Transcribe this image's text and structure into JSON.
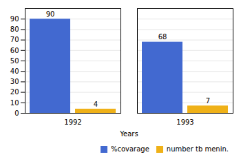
{
  "chart_data": {
    "type": "bar",
    "categories": [
      "1992",
      "1993"
    ],
    "series": [
      {
        "name": "%covarage",
        "values": [
          90,
          68
        ]
      },
      {
        "name": "number tb menin.",
        "values": [
          4,
          7
        ]
      }
    ],
    "xlabel": "Years",
    "ylim": [
      0,
      100
    ],
    "yticks": [
      0,
      10,
      20,
      30,
      40,
      50,
      60,
      70,
      80,
      90
    ],
    "grid": true,
    "legend": "lower right",
    "data_labels": true
  }
}
